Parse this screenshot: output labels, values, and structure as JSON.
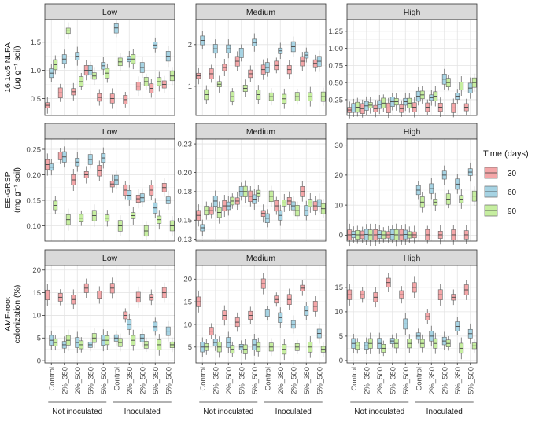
{
  "chart_data": {
    "type": "boxplot",
    "facet_columns": [
      "Low",
      "Medium",
      "High"
    ],
    "categories": [
      "Control",
      "2%_350",
      "2%_500",
      "5%_350",
      "5%_500",
      "Control",
      "2%_350",
      "2%_500",
      "5%_350",
      "5%_500"
    ],
    "groups": [
      {
        "label": "Not inoculated",
        "from": 0,
        "to": 4
      },
      {
        "label": "Inoculated",
        "from": 5,
        "to": 9
      }
    ],
    "legend": {
      "title": "Time (days)",
      "entries": [
        "30",
        "60",
        "90"
      ],
      "position": "right"
    },
    "colors": {
      "30": "#f4a6a8",
      "60": "#a6d3e3",
      "90": "#c6eea0"
    },
    "grid": true,
    "rows": [
      {
        "ylabel_lines": [
          "16:1ω5 NLFA",
          "(µg g⁻¹ soil)"
        ],
        "panels": [
          {
            "ylim": [
              0.2,
              1.9
            ],
            "ticks": [
              0.5,
              1.0,
              1.5
            ],
            "tick_labels": [
              "0.5",
              "1.0",
              "1.5"
            ],
            "values": [
              [
                0.38,
                0.6,
                0.62,
                1.0,
                0.52,
                0.5,
                0.48,
                0.72,
                0.68,
                0.75
              ],
              [
                0.95,
                1.2,
                1.25,
                1.0,
                1.08,
                1.75,
                1.2,
                1.05,
                1.45,
                1.25
              ],
              [
                1.1,
                1.7,
                0.8,
                0.9,
                0.95,
                1.15,
                1.2,
                0.8,
                0.8,
                0.9
              ]
            ]
          },
          {
            "ylim": [
              0.3,
              2.6
            ],
            "ticks": [
              1,
              2
            ],
            "tick_labels": [
              "1",
              "2"
            ],
            "values": [
              [
                1.25,
                1.3,
                1.45,
                1.6,
                1.3,
                1.4,
                1.5,
                1.4,
                1.6,
                1.55
              ],
              [
                2.1,
                1.9,
                1.9,
                1.8,
                2.05,
                1.45,
                1.85,
                1.95,
                1.75,
                1.6
              ],
              [
                0.8,
                1.05,
                0.75,
                0.95,
                0.8,
                0.75,
                0.7,
                0.75,
                0.75,
                0.75
              ]
            ]
          },
          {
            "ylim": [
              0.02,
              1.42
            ],
            "ticks": [
              0.25,
              0.5,
              0.75,
              1.0,
              1.25
            ],
            "tick_labels": [
              "0.25",
              "0.50",
              "0.75",
              "1.00",
              "1.25"
            ],
            "values": [
              [
                0.1,
                0.12,
                0.12,
                0.13,
                0.12,
                0.14,
                0.14,
                0.14,
                0.13,
                0.14
              ],
              [
                0.13,
                0.16,
                0.18,
                0.22,
                0.22,
                0.3,
                0.28,
                0.55,
                0.3,
                0.42
              ],
              [
                0.14,
                0.17,
                0.2,
                0.22,
                0.2,
                0.32,
                0.3,
                0.5,
                0.45,
                0.5
              ]
            ]
          }
        ]
      },
      {
        "ylabel_lines": [
          "EE-GRSP",
          "(mg g⁻¹ soil)"
        ],
        "panels": [
          {
            "ylim": [
              0.07,
              0.27
            ],
            "ticks": [
              0.1,
              0.15,
              0.2,
              0.25
            ],
            "tick_labels": [
              "0.10",
              "0.15",
              "0.20",
              "0.25"
            ],
            "values": [
              [
                0.22,
                0.237,
                0.19,
                0.2,
                0.208,
                0.182,
                0.17,
                0.153,
                0.17,
                0.175
              ],
              [
                0.215,
                0.235,
                0.225,
                0.23,
                0.233,
                0.19,
                0.16,
                0.155,
                0.135,
                0.15
              ],
              [
                0.14,
                0.112,
                0.115,
                0.12,
                0.115,
                0.1,
                0.12,
                0.09,
                0.112,
                0.1
              ]
            ]
          },
          {
            "ylim": [
              0.128,
              0.235
            ],
            "ticks": [
              0.13,
              0.15,
              0.18,
              0.2,
              0.23
            ],
            "tick_labels": [
              "0.13",
              "0.15",
              "0.18",
              "0.20",
              "0.23"
            ],
            "values": [
              [
                0.155,
                0.16,
                0.165,
                0.17,
                0.175,
                0.157,
                0.165,
                0.17,
                0.18,
                0.165
              ],
              [
                0.142,
                0.17,
                0.165,
                0.18,
                0.172,
                0.152,
                0.155,
                0.165,
                0.16,
                0.168
              ],
              [
                0.16,
                0.158,
                0.17,
                0.18,
                0.178,
                0.175,
                0.168,
                0.16,
                0.168,
                0.162
              ]
            ]
          },
          {
            "ylim": [
              -2,
              32
            ],
            "ticks": [
              0,
              10,
              20,
              30
            ],
            "tick_labels": [
              "0",
              "10",
              "20",
              "30"
            ],
            "values": [
              [
                0.1,
                0.1,
                0.1,
                0.1,
                0.1,
                0.1,
                0.1,
                0.1,
                0.1,
                0.1
              ],
              [
                0.2,
                0.2,
                0.2,
                0.2,
                0.2,
                15.0,
                15.5,
                20.0,
                17.0,
                21.0
              ],
              [
                0.1,
                0.1,
                0.1,
                0.1,
                0.1,
                11.0,
                11.0,
                12.0,
                12.0,
                13.0
              ]
            ]
          }
        ]
      },
      {
        "ylabel_lines": [
          "AMF-root",
          "colonization (%)"
        ],
        "panels": [
          {
            "ylim": [
              -0.5,
              21
            ],
            "ticks": [
              0,
              5,
              10,
              15,
              20
            ],
            "tick_labels": [
              "0",
              "5",
              "10",
              "15",
              "20"
            ],
            "values": [
              [
                14.5,
                14.0,
                13.5,
                16.0,
                14.5,
                16.0,
                10.0,
                14.0,
                14.0,
                15.0
              ],
              [
                4.5,
                3.5,
                4.0,
                3.5,
                4.5,
                5.0,
                8.0,
                5.0,
                7.5,
                6.5
              ],
              [
                4.0,
                4.5,
                3.5,
                5.0,
                4.5,
                4.0,
                4.5,
                3.5,
                3.5,
                3.5
              ]
            ]
          },
          {
            "ylim": [
              1.5,
              23
            ],
            "ticks": [
              5,
              10,
              15,
              20
            ],
            "tick_labels": [
              "5",
              "10",
              "15",
              "20"
            ],
            "values": [
              [
                15.0,
                8.5,
                12.0,
                10.5,
                12.0,
                19.0,
                15.5,
                15.5,
                18.0,
                14.0
              ],
              [
                5.0,
                6.0,
                6.0,
                5.0,
                5.5,
                12.5,
                11.5,
                10.0,
                13.0,
                8.0
              ],
              [
                5.0,
                5.0,
                4.5,
                4.5,
                5.0,
                5.0,
                4.5,
                5.0,
                5.0,
                4.5
              ]
            ]
          },
          {
            "ylim": [
              -0.5,
              19.5
            ],
            "ticks": [
              0,
              5,
              10,
              15
            ],
            "tick_labels": [
              "0",
              "5",
              "10",
              "15"
            ],
            "values": [
              [
                13.5,
                13.5,
                13.0,
                16.0,
                13.5,
                15.0,
                9.0,
                13.5,
                13.0,
                14.5
              ],
              [
                3.5,
                3.0,
                3.5,
                4.0,
                7.5,
                5.0,
                5.0,
                4.0,
                7.0,
                5.5
              ],
              [
                3.0,
                3.5,
                2.5,
                3.5,
                3.5,
                3.5,
                3.5,
                3.5,
                2.5,
                3.0
              ]
            ]
          }
        ]
      }
    ]
  }
}
